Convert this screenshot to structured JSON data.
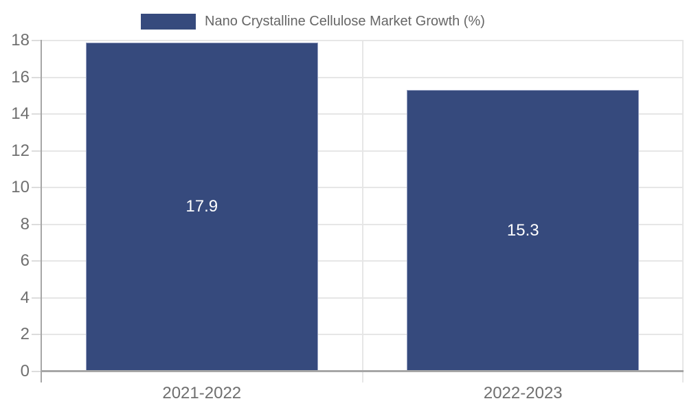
{
  "chart_data": {
    "type": "bar",
    "title": "",
    "xlabel": "",
    "ylabel": "",
    "categories": [
      "2021-2022",
      "2022-2023"
    ],
    "series": [
      {
        "name": "Nano Crystalline Cellulose Market Growth (%)",
        "values": [
          17.9,
          15.3
        ]
      }
    ],
    "value_labels": [
      "17.9",
      "15.3"
    ],
    "ylim": [
      0,
      18
    ],
    "yticks": [
      0,
      2,
      4,
      6,
      8,
      10,
      12,
      14,
      16,
      18
    ],
    "grid": true,
    "legend_position": "top-center",
    "colors": {
      "bar": "#364a7d",
      "bar_edge": "#9aa4c4",
      "value_label": "#ffffff",
      "gridline": "#e6e6e6",
      "axis": "#a6a6a6",
      "tick_label": "#6f6f6f",
      "legend_text": "#666666",
      "background": "#ffffff"
    }
  }
}
